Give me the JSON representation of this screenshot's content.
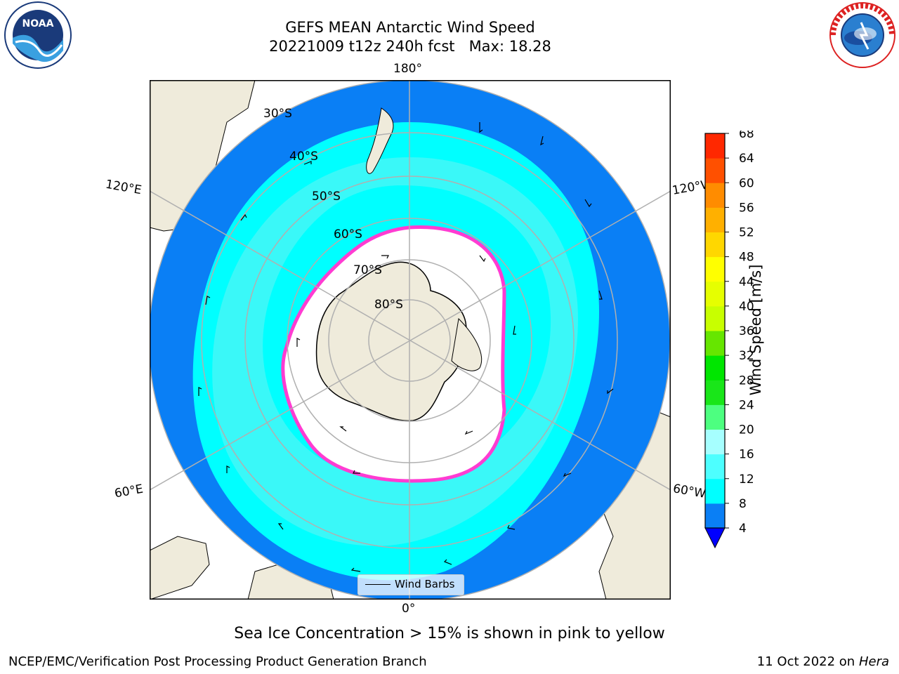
{
  "title": {
    "line1": "GEFS MEAN Antarctic Wind Speed",
    "line2": "20221009 t12z 240h fcst   Max: 18.28"
  },
  "logos": {
    "left": "noara-logo",
    "left_text": "NOAA",
    "left_ring_text": "NATIONAL OCEANIC AND ATMOSPHERIC ADMINISTRATION · U.S. DEPARTMENT OF COMMERCE",
    "right": "nws-logo",
    "right_ring_text": "NATIONAL WEATHER SERVICE"
  },
  "map": {
    "longitude_labels": {
      "top": "180°",
      "bottom": "0°",
      "upper_left": "120°E",
      "upper_right": "120°W",
      "lower_left": "60°E",
      "lower_right": "60°W"
    },
    "latitude_labels": [
      "30°S",
      "40°S",
      "50°S",
      "60°S",
      "70°S",
      "80°S"
    ],
    "legend_label": "Wind Barbs",
    "colors": {
      "land": "#efebdb",
      "ice_shelf": "#ffffff",
      "ocean_low": "#0a7ff5",
      "ocean_mid": "#00ffff",
      "ocean_high": "#4df5f5",
      "ice_edge": "#ff3cd2",
      "grid": "#b0b0b0"
    }
  },
  "colorbar": {
    "label": "Wind Speed [m/s]",
    "ticks": [
      "4",
      "8",
      "12",
      "16",
      "20",
      "24",
      "28",
      "32",
      "36",
      "40",
      "44",
      "48",
      "52",
      "56",
      "60",
      "64",
      "68"
    ],
    "colors": [
      "#0a7ff5",
      "#00ffff",
      "#4dffff",
      "#a6ffff",
      "#4dff80",
      "#19e619",
      "#00e600",
      "#66e600",
      "#c8ff00",
      "#e6ff00",
      "#ffff00",
      "#ffd700",
      "#ffb000",
      "#ff8c00",
      "#ff5000",
      "#ff2800"
    ],
    "extend_color": "#0000ff"
  },
  "caption": "Sea Ice Concentration > 15% is shown in pink to yellow",
  "footer": {
    "left": "NCEP/EMC/Verification Post Processing Product Generation Branch",
    "right_prefix": "11 Oct 2022 on ",
    "right_machine": "Hera"
  }
}
